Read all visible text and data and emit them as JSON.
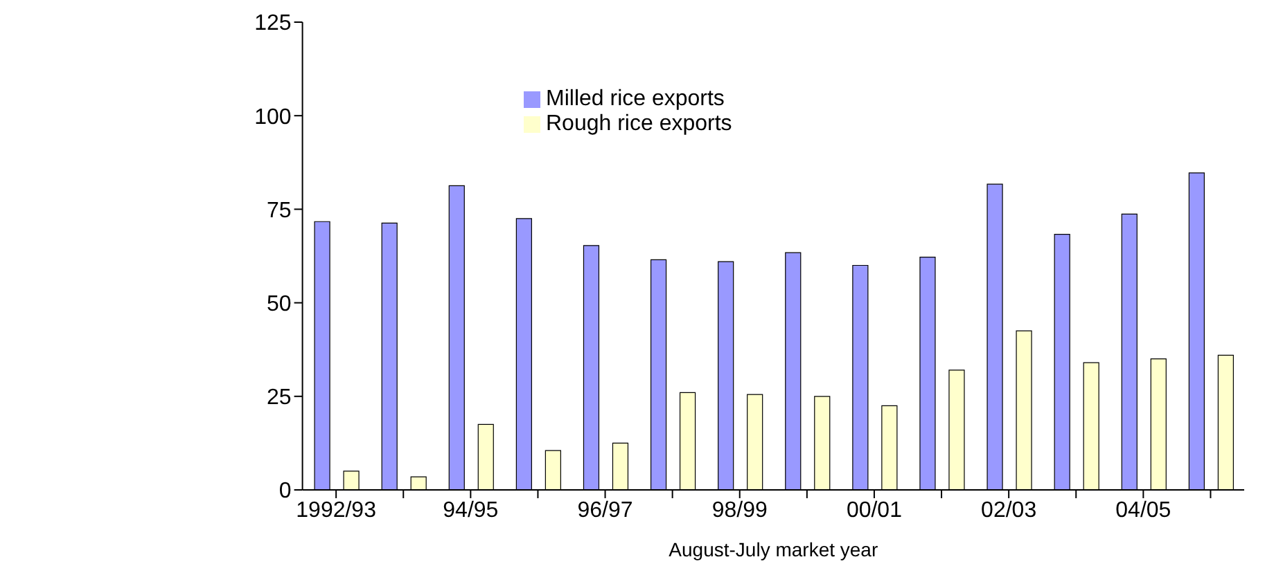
{
  "chart_data": {
    "type": "bar",
    "xlabel": "August-July market year",
    "categories": [
      "1992/93",
      null,
      "94/95",
      null,
      "96/97",
      null,
      "98/99",
      null,
      "00/01",
      null,
      "02/03",
      null,
      "04/05",
      null
    ],
    "series": [
      {
        "name": "Milled rice exports",
        "color": "#9999ff",
        "values": [
          71.7,
          71.3,
          81.3,
          72.5,
          65.3,
          61.5,
          61,
          63.4,
          60,
          62.2,
          81.7,
          68.3,
          73.7,
          84.7
        ]
      },
      {
        "name": "Rough rice exports",
        "color": "#ffffcc",
        "values": [
          5,
          3.5,
          17.5,
          10.5,
          12.5,
          26,
          25.5,
          25,
          22.5,
          32,
          42.5,
          34,
          35,
          36
        ]
      }
    ],
    "ylim": [
      0,
      125
    ],
    "yticks": [
      0,
      25,
      50,
      75,
      100,
      125
    ],
    "legend": "top"
  }
}
